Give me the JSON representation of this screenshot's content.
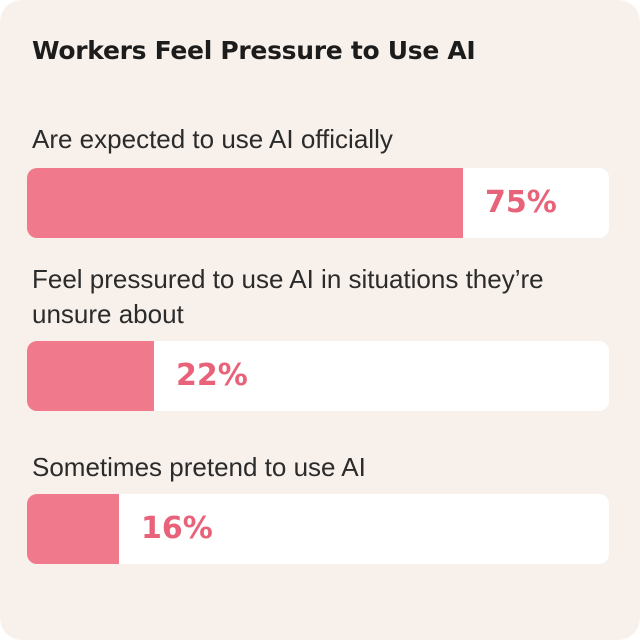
{
  "colors": {
    "background": "#f8f1eb",
    "track": "#ffffff",
    "bar": "#f07a8c",
    "value_text": "#e8637a",
    "title_text": "#1c1c1c",
    "label_text": "#2b2b2b"
  },
  "chart_data": {
    "type": "bar",
    "orientation": "horizontal",
    "title": "Workers Feel Pressure to Use AI",
    "xlim": [
      0,
      100
    ],
    "unit": "%",
    "categories": [
      "Are expected to use AI officially",
      "Feel pressured to use AI in situations they’re unsure about",
      "Sometimes pretend to use AI"
    ],
    "values": [
      75,
      22,
      16
    ],
    "value_labels": [
      "75%",
      "22%",
      "16%"
    ],
    "grid": false,
    "legend": "none"
  }
}
